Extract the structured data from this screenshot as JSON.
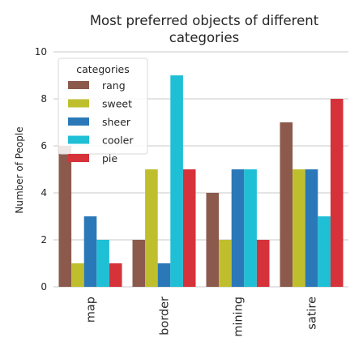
{
  "chart_data": {
    "type": "bar",
    "title": "Most preferred objects of different categories",
    "title_lines": [
      "Most preferred objects of different",
      "categories"
    ],
    "xlabel": "",
    "ylabel": "Number of People",
    "ylim": [
      0,
      10
    ],
    "yticks": [
      0,
      2,
      4,
      6,
      8,
      10
    ],
    "grid": true,
    "legend_title": "categories",
    "legend_position": "top-left",
    "categories": [
      "map",
      "border",
      "mining",
      "satire"
    ],
    "series": [
      {
        "name": "rang",
        "color": "#8c5a4c",
        "values": [
          6,
          2,
          4,
          7
        ]
      },
      {
        "name": "sweet",
        "color": "#bfbf2e",
        "values": [
          1,
          5,
          2,
          5
        ]
      },
      {
        "name": "sheer",
        "color": "#2a78b8",
        "values": [
          3,
          1,
          5,
          5
        ]
      },
      {
        "name": "cooler",
        "color": "#1fbfd6",
        "values": [
          2,
          9,
          5,
          3
        ]
      },
      {
        "name": "pie",
        "color": "#d6323a",
        "values": [
          1,
          5,
          2,
          8
        ]
      }
    ]
  }
}
